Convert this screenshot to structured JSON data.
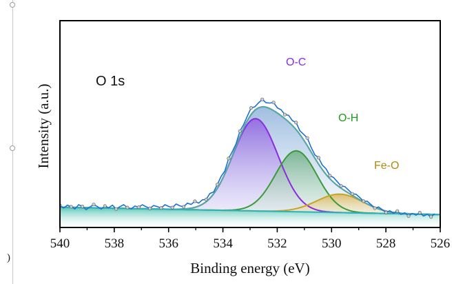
{
  "chart_data": {
    "type": "line",
    "title": "",
    "xlabel": "Binding energy (eV)",
    "ylabel": "Intensity (a.u.)",
    "xlim": [
      540,
      526
    ],
    "ylim": [
      0,
      1.12
    ],
    "x_ticks": [
      "540",
      "538",
      "536",
      "534",
      "532",
      "530",
      "528",
      "526"
    ],
    "y_ticks_shown": false,
    "grid": false,
    "annotation": "O 1s",
    "baseline": {
      "name": "Background",
      "start": 0.11,
      "end": 0.07,
      "color": "#2bb3b8"
    },
    "components": [
      {
        "name": "O-C",
        "center": 532.8,
        "fwhm": 1.95,
        "height": 0.5,
        "color": "#8a2be2",
        "label_color": "#8a2be2"
      },
      {
        "name": "O-H",
        "center": 531.3,
        "fwhm": 1.8,
        "height": 0.33,
        "color": "#3a9a3a",
        "label_color": "#1e9a1e"
      },
      {
        "name": "Fe-O",
        "center": 529.7,
        "fwhm": 2.0,
        "height": 0.1,
        "color": "#c9a227",
        "label_color": "#b08a10"
      }
    ],
    "envelope": {
      "name": "Fitted envelope",
      "color": "#5aa6a6"
    },
    "raw_data": {
      "name": "Experimental",
      "color": "#1f6fd1",
      "noise": [
        0.01,
        -0.004,
        0.012,
        0.003,
        -0.008,
        0.015,
        0.006,
        -0.01,
        0.004,
        0.018,
        0.007,
        -0.006,
        0.011,
        0.002,
        0.016,
        -0.004,
        0.009,
        0.02,
        0.005,
        -0.002,
        0.014,
        0.008,
        0.022,
        0.011,
        0.003,
        0.019,
        0.013,
        0.006,
        0.024,
        0.015,
        0.009,
        0.028,
        0.018,
        0.012,
        0.03,
        0.02,
        0.033,
        0.016,
        0.024,
        0.012,
        0.026,
        0.01,
        0.02,
        0.028,
        0.015,
        0.035,
        0.022,
        0.012,
        0.03,
        0.018,
        0.025,
        0.036,
        0.019,
        0.027,
        0.04,
        0.024,
        0.03,
        0.044,
        0.028,
        0.032,
        0.022,
        0.035,
        0.026,
        0.038,
        0.02,
        0.03,
        0.042,
        0.025,
        0.018,
        0.034,
        0.024,
        0.03,
        0.016,
        0.026,
        0.02,
        0.012,
        0.022,
        0.016,
        0.008,
        0.018,
        0.012,
        0.004,
        0.014,
        0.006,
        -0.004,
        0.01,
        0.002,
        -0.008,
        0.006,
        -0.004,
        0.01,
        -0.006,
        0.004,
        -0.012,
        0.002,
        -0.006,
        0.008,
        -0.01,
        0.0,
        -0.014,
        0.004
      ]
    }
  }
}
